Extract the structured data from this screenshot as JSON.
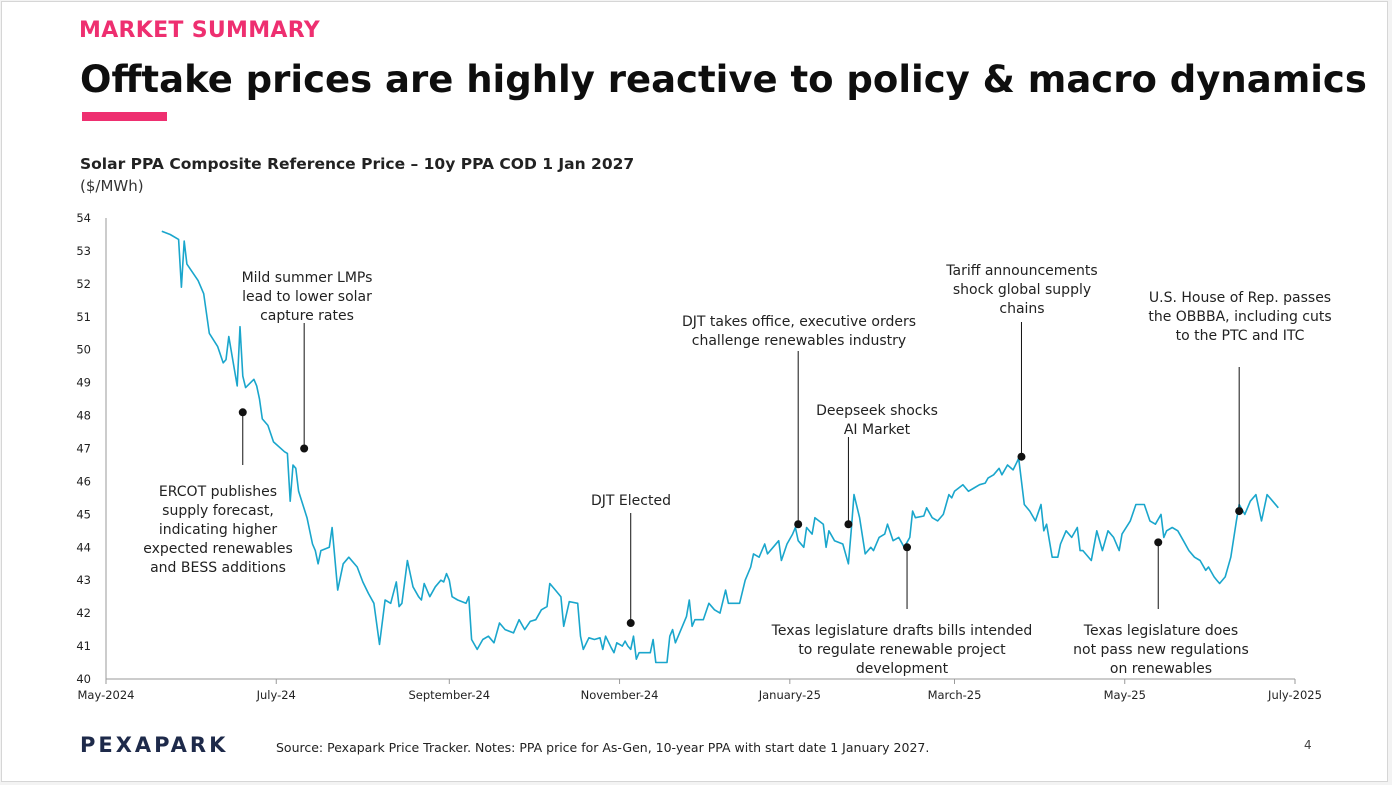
{
  "slide": {
    "eyebrow": "MARKET SUMMARY",
    "title": "Offtake prices are highly reactive to policy & macro dynamics",
    "chart_title": "Solar PPA Composite Reference Price – 10y PPA COD 1 Jan 2027",
    "chart_units": "($/MWh)",
    "logo": "PEXAPARK",
    "source": "Source: Pexapark Price Tracker. Notes: PPA price for As-Gen, 10-year PPA with start date 1 January 2027.",
    "page_number": "4",
    "accent_color": "#ee2f70",
    "line_color": "#1aa6cc"
  },
  "chart_data": {
    "type": "line",
    "ylim": [
      40,
      54
    ],
    "yticks": [
      "40",
      "41",
      "42",
      "43",
      "44",
      "45",
      "46",
      "47",
      "48",
      "49",
      "50",
      "51",
      "52",
      "53",
      "54"
    ],
    "xlim": [
      "2024-05-01",
      "2025-07-01"
    ],
    "xticks": [
      {
        "date": "2024-05-01",
        "label": "May-2024"
      },
      {
        "date": "2024-07-01",
        "label": "July-24"
      },
      {
        "date": "2024-09-01",
        "label": "September-24"
      },
      {
        "date": "2024-11-01",
        "label": "November-24"
      },
      {
        "date": "2025-01-01",
        "label": "January-25"
      },
      {
        "date": "2025-03-01",
        "label": "March-25"
      },
      {
        "date": "2025-05-01",
        "label": "May-25"
      },
      {
        "date": "2025-07-01",
        "label": "July-2025"
      }
    ],
    "series": [
      {
        "points": [
          [
            "2024-05-21",
            53.6
          ],
          [
            "2024-05-24",
            53.5
          ],
          [
            "2024-05-27",
            53.35
          ],
          [
            "2024-05-28",
            51.9
          ],
          [
            "2024-05-29",
            53.3
          ],
          [
            "2024-05-30",
            52.6
          ],
          [
            "2024-06-03",
            52.1
          ],
          [
            "2024-06-05",
            51.7
          ],
          [
            "2024-06-07",
            50.5
          ],
          [
            "2024-06-10",
            50.1
          ],
          [
            "2024-06-12",
            49.6
          ],
          [
            "2024-06-13",
            49.7
          ],
          [
            "2024-06-14",
            50.4
          ],
          [
            "2024-06-16",
            49.4
          ],
          [
            "2024-06-17",
            48.9
          ],
          [
            "2024-06-18",
            50.7
          ],
          [
            "2024-06-19",
            49.2
          ],
          [
            "2024-06-20",
            48.85
          ],
          [
            "2024-06-23",
            49.1
          ],
          [
            "2024-06-24",
            48.9
          ],
          [
            "2024-06-25",
            48.5
          ],
          [
            "2024-06-26",
            47.9
          ],
          [
            "2024-06-28",
            47.7
          ],
          [
            "2024-06-30",
            47.2
          ],
          [
            "2024-07-04",
            46.9
          ],
          [
            "2024-07-05",
            46.85
          ],
          [
            "2024-07-06",
            45.4
          ],
          [
            "2024-07-07",
            46.5
          ],
          [
            "2024-07-08",
            46.4
          ],
          [
            "2024-07-09",
            45.7
          ],
          [
            "2024-07-12",
            44.9
          ],
          [
            "2024-07-14",
            44.1
          ],
          [
            "2024-07-15",
            43.9
          ],
          [
            "2024-07-16",
            43.5
          ],
          [
            "2024-07-17",
            43.9
          ],
          [
            "2024-07-20",
            44.0
          ],
          [
            "2024-07-21",
            44.6
          ],
          [
            "2024-07-23",
            42.7
          ],
          [
            "2024-07-25",
            43.5
          ],
          [
            "2024-07-27",
            43.7
          ],
          [
            "2024-07-30",
            43.4
          ],
          [
            "2024-08-01",
            42.95
          ],
          [
            "2024-08-03",
            42.6
          ],
          [
            "2024-08-05",
            42.3
          ],
          [
            "2024-08-07",
            41.05
          ],
          [
            "2024-08-09",
            42.4
          ],
          [
            "2024-08-11",
            42.3
          ],
          [
            "2024-08-13",
            42.95
          ],
          [
            "2024-08-14",
            42.2
          ],
          [
            "2024-08-15",
            42.3
          ],
          [
            "2024-08-17",
            43.6
          ],
          [
            "2024-08-19",
            42.8
          ],
          [
            "2024-08-21",
            42.5
          ],
          [
            "2024-08-22",
            42.4
          ],
          [
            "2024-08-23",
            42.9
          ],
          [
            "2024-08-25",
            42.5
          ],
          [
            "2024-08-27",
            42.8
          ],
          [
            "2024-08-29",
            43.0
          ],
          [
            "2024-08-30",
            42.95
          ],
          [
            "2024-08-31",
            43.2
          ],
          [
            "2024-09-01",
            43.0
          ],
          [
            "2024-09-02",
            42.5
          ],
          [
            "2024-09-04",
            42.4
          ],
          [
            "2024-09-07",
            42.3
          ],
          [
            "2024-09-08",
            42.5
          ],
          [
            "2024-09-09",
            41.2
          ],
          [
            "2024-09-11",
            40.9
          ],
          [
            "2024-09-13",
            41.2
          ],
          [
            "2024-09-15",
            41.3
          ],
          [
            "2024-09-17",
            41.1
          ],
          [
            "2024-09-19",
            41.7
          ],
          [
            "2024-09-21",
            41.5
          ],
          [
            "2024-09-24",
            41.4
          ],
          [
            "2024-09-26",
            41.8
          ],
          [
            "2024-09-28",
            41.5
          ],
          [
            "2024-09-30",
            41.75
          ],
          [
            "2024-10-02",
            41.8
          ],
          [
            "2024-10-04",
            42.1
          ],
          [
            "2024-10-06",
            42.2
          ],
          [
            "2024-10-07",
            42.9
          ],
          [
            "2024-10-09",
            42.7
          ],
          [
            "2024-10-11",
            42.5
          ],
          [
            "2024-10-12",
            41.6
          ],
          [
            "2024-10-14",
            42.35
          ],
          [
            "2024-10-17",
            42.3
          ],
          [
            "2024-10-18",
            41.3
          ],
          [
            "2024-10-19",
            40.9
          ],
          [
            "2024-10-21",
            41.25
          ],
          [
            "2024-10-23",
            41.2
          ],
          [
            "2024-10-25",
            41.25
          ],
          [
            "2024-10-26",
            40.9
          ],
          [
            "2024-10-27",
            41.3
          ],
          [
            "2024-10-29",
            40.95
          ],
          [
            "2024-10-30",
            40.8
          ],
          [
            "2024-10-31",
            41.1
          ],
          [
            "2024-11-02",
            41.0
          ],
          [
            "2024-11-03",
            41.15
          ],
          [
            "2024-11-04",
            41.0
          ],
          [
            "2024-11-05",
            40.9
          ],
          [
            "2024-11-06",
            41.3
          ],
          [
            "2024-11-07",
            40.6
          ],
          [
            "2024-11-08",
            40.8
          ],
          [
            "2024-11-12",
            40.8
          ],
          [
            "2024-11-13",
            41.2
          ],
          [
            "2024-11-14",
            40.5
          ],
          [
            "2024-11-18",
            40.5
          ],
          [
            "2024-11-19",
            41.3
          ],
          [
            "2024-11-20",
            41.5
          ],
          [
            "2024-11-21",
            41.1
          ],
          [
            "2024-11-23",
            41.5
          ],
          [
            "2024-11-25",
            41.9
          ],
          [
            "2024-11-26",
            42.4
          ],
          [
            "2024-11-27",
            41.6
          ],
          [
            "2024-11-28",
            41.8
          ],
          [
            "2024-12-01",
            41.8
          ],
          [
            "2024-12-03",
            42.3
          ],
          [
            "2024-12-05",
            42.1
          ],
          [
            "2024-12-07",
            42.0
          ],
          [
            "2024-12-09",
            42.7
          ],
          [
            "2024-12-10",
            42.3
          ],
          [
            "2024-12-13",
            42.3
          ],
          [
            "2024-12-14",
            42.3
          ],
          [
            "2024-12-16",
            43.0
          ],
          [
            "2024-12-18",
            43.4
          ],
          [
            "2024-12-19",
            43.8
          ],
          [
            "2024-12-21",
            43.7
          ],
          [
            "2024-12-23",
            44.1
          ],
          [
            "2024-12-24",
            43.8
          ],
          [
            "2024-12-26",
            44.0
          ],
          [
            "2024-12-28",
            44.2
          ],
          [
            "2024-12-29",
            43.6
          ],
          [
            "2024-12-31",
            44.1
          ],
          [
            "2025-01-02",
            44.4
          ],
          [
            "2025-01-03",
            44.6
          ],
          [
            "2025-01-04",
            44.2
          ],
          [
            "2025-01-06",
            44.0
          ],
          [
            "2025-01-07",
            44.6
          ],
          [
            "2025-01-09",
            44.4
          ],
          [
            "2025-01-10",
            44.9
          ],
          [
            "2025-01-13",
            44.7
          ],
          [
            "2025-01-14",
            44.0
          ],
          [
            "2025-01-15",
            44.5
          ],
          [
            "2025-01-17",
            44.2
          ],
          [
            "2025-01-20",
            44.1
          ],
          [
            "2025-01-22",
            43.5
          ],
          [
            "2025-01-23",
            44.5
          ],
          [
            "2025-01-24",
            45.6
          ],
          [
            "2025-01-26",
            44.9
          ],
          [
            "2025-01-28",
            43.8
          ],
          [
            "2025-01-30",
            44.0
          ],
          [
            "2025-01-31",
            43.9
          ],
          [
            "2025-02-02",
            44.3
          ],
          [
            "2025-02-04",
            44.4
          ],
          [
            "2025-02-05",
            44.7
          ],
          [
            "2025-02-07",
            44.2
          ],
          [
            "2025-02-09",
            44.3
          ],
          [
            "2025-02-11",
            44.0
          ],
          [
            "2025-02-13",
            44.3
          ],
          [
            "2025-02-14",
            45.1
          ],
          [
            "2025-02-15",
            44.9
          ],
          [
            "2025-02-18",
            44.95
          ],
          [
            "2025-02-19",
            45.2
          ],
          [
            "2025-02-21",
            44.9
          ],
          [
            "2025-02-23",
            44.8
          ],
          [
            "2025-02-25",
            45.0
          ],
          [
            "2025-02-27",
            45.6
          ],
          [
            "2025-02-28",
            45.5
          ],
          [
            "2025-03-01",
            45.7
          ],
          [
            "2025-03-04",
            45.9
          ],
          [
            "2025-03-06",
            45.7
          ],
          [
            "2025-03-08",
            45.8
          ],
          [
            "2025-03-10",
            45.9
          ],
          [
            "2025-03-12",
            45.95
          ],
          [
            "2025-03-13",
            46.1
          ],
          [
            "2025-03-15",
            46.2
          ],
          [
            "2025-03-17",
            46.4
          ],
          [
            "2025-03-18",
            46.2
          ],
          [
            "2025-03-20",
            46.5
          ],
          [
            "2025-03-22",
            46.35
          ],
          [
            "2025-03-24",
            46.7
          ],
          [
            "2025-03-26",
            45.3
          ],
          [
            "2025-03-28",
            45.1
          ],
          [
            "2025-03-30",
            44.8
          ],
          [
            "2025-04-01",
            45.3
          ],
          [
            "2025-04-02",
            44.5
          ],
          [
            "2025-04-03",
            44.7
          ],
          [
            "2025-04-05",
            43.7
          ],
          [
            "2025-04-07",
            43.7
          ],
          [
            "2025-04-08",
            44.1
          ],
          [
            "2025-04-10",
            44.5
          ],
          [
            "2025-04-12",
            44.3
          ],
          [
            "2025-04-14",
            44.6
          ],
          [
            "2025-04-15",
            43.9
          ],
          [
            "2025-04-16",
            43.9
          ],
          [
            "2025-04-19",
            43.6
          ],
          [
            "2025-04-21",
            44.5
          ],
          [
            "2025-04-23",
            43.9
          ],
          [
            "2025-04-25",
            44.5
          ],
          [
            "2025-04-27",
            44.3
          ],
          [
            "2025-04-29",
            43.9
          ],
          [
            "2025-04-30",
            44.4
          ],
          [
            "2025-05-03",
            44.8
          ],
          [
            "2025-05-05",
            45.3
          ],
          [
            "2025-05-08",
            45.3
          ],
          [
            "2025-05-10",
            44.8
          ],
          [
            "2025-05-12",
            44.7
          ],
          [
            "2025-05-14",
            45.0
          ],
          [
            "2025-05-15",
            44.3
          ],
          [
            "2025-05-16",
            44.5
          ],
          [
            "2025-05-18",
            44.6
          ],
          [
            "2025-05-20",
            44.5
          ],
          [
            "2025-05-22",
            44.2
          ],
          [
            "2025-05-24",
            43.9
          ],
          [
            "2025-05-26",
            43.7
          ],
          [
            "2025-05-28",
            43.6
          ],
          [
            "2025-05-30",
            43.3
          ],
          [
            "2025-05-31",
            43.4
          ],
          [
            "2025-06-02",
            43.1
          ],
          [
            "2025-06-03",
            43.0
          ],
          [
            "2025-06-04",
            42.9
          ],
          [
            "2025-06-06",
            43.1
          ],
          [
            "2025-06-08",
            43.7
          ],
          [
            "2025-06-10",
            44.8
          ],
          [
            "2025-06-11",
            45.3
          ],
          [
            "2025-06-13",
            45.0
          ],
          [
            "2025-06-15",
            45.4
          ],
          [
            "2025-06-17",
            45.6
          ],
          [
            "2025-06-19",
            44.8
          ],
          [
            "2025-06-21",
            45.6
          ],
          [
            "2025-06-23",
            45.4
          ],
          [
            "2025-06-25",
            45.2
          ]
        ]
      }
    ],
    "annotations": [
      {
        "date": "2024-06-19",
        "value": 48.1,
        "lines": [
          "ERCOT publishes",
          "supply forecast,",
          "indicating higher",
          "expected renewables",
          "and BESS additions"
        ],
        "placement": "below"
      },
      {
        "date": "2024-07-11",
        "value": 47.0,
        "lines": [
          "Mild summer LMPs",
          "lead to lower solar",
          "capture rates"
        ],
        "placement": "above"
      },
      {
        "date": "2024-11-05",
        "value": 41.7,
        "lines": [
          "DJT Elected"
        ],
        "placement": "above"
      },
      {
        "date": "2025-01-04",
        "value": 44.7,
        "lines": [
          "DJT takes office, executive orders",
          "challenge renewables industry"
        ],
        "placement": "above"
      },
      {
        "date": "2025-01-22",
        "value": 44.7,
        "lines": [
          "Deepseek shocks",
          "AI Market"
        ],
        "placement": "above"
      },
      {
        "date": "2025-02-12",
        "value": 44.0,
        "lines": [
          "Texas legislature drafts bills intended",
          "to regulate renewable project",
          "development"
        ],
        "placement": "below"
      },
      {
        "date": "2025-03-25",
        "value": 46.75,
        "lines": [
          "Tariff announcements",
          "shock global supply",
          "chains"
        ],
        "placement": "above"
      },
      {
        "date": "2025-05-13",
        "value": 44.15,
        "lines": [
          "Texas legislature does",
          "not pass new regulations",
          "on renewables"
        ],
        "placement": "below"
      },
      {
        "date": "2025-06-11",
        "value": 45.1,
        "lines": [
          "U.S. House of Rep. passes",
          "the OBBBA, including cuts",
          "to the PTC and ITC"
        ],
        "placement": "above"
      }
    ]
  }
}
